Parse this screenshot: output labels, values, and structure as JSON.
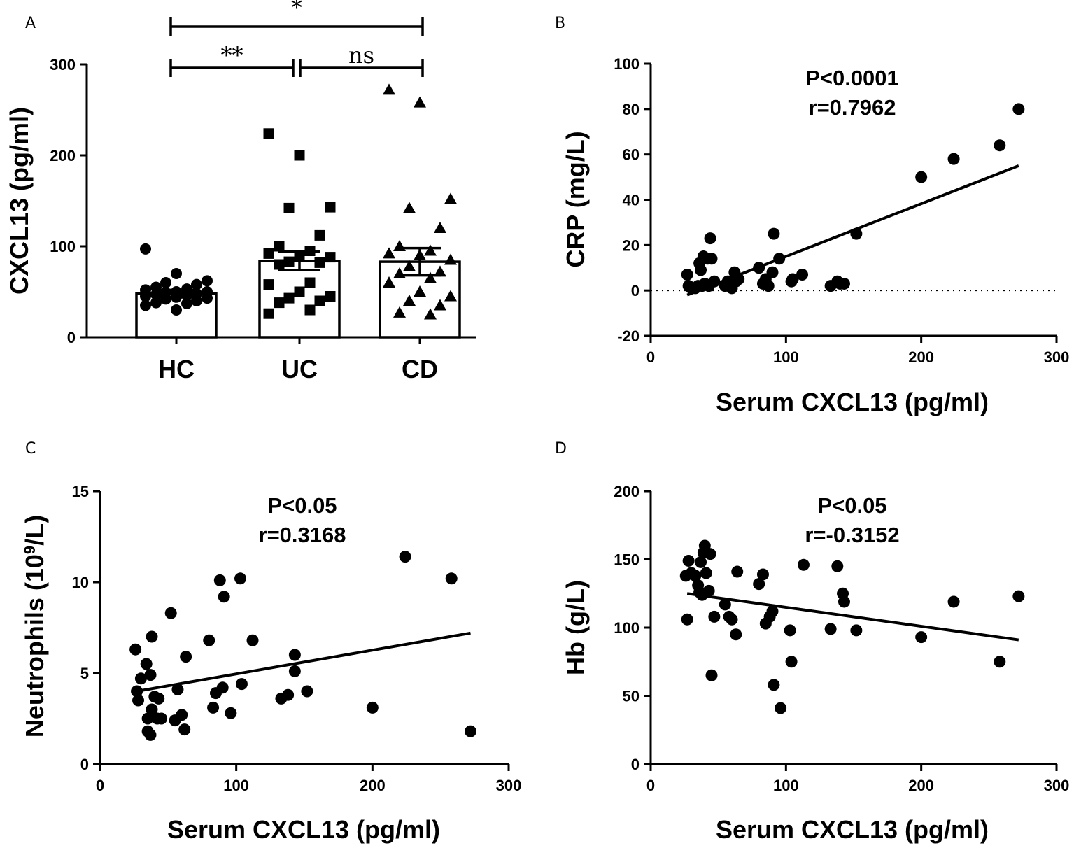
{
  "chart_data": [
    {
      "panel": "A",
      "type": "bar",
      "categories": [
        "HC",
        "UC",
        "CD"
      ],
      "values": [
        48,
        84,
        83
      ],
      "sem": [
        4,
        10,
        15
      ],
      "ylabel": "CXCL13 (pg/ml)",
      "ylim": [
        0,
        300
      ],
      "yticks": [
        0,
        100,
        200,
        300
      ],
      "markers": [
        "circle",
        "square",
        "triangle"
      ],
      "points": [
        [
          97,
          70,
          62,
          60,
          58,
          55,
          53,
          52,
          50,
          50,
          49,
          48,
          47,
          46,
          45,
          44,
          43,
          42,
          40,
          38,
          37,
          35,
          30
        ],
        [
          224,
          200,
          143,
          142,
          112,
          100,
          95,
          92,
          90,
          88,
          83,
          82,
          80,
          60,
          58,
          50,
          45,
          43,
          40,
          38,
          30,
          26
        ],
        [
          272,
          258,
          152,
          142,
          120,
          100,
          95,
          92,
          90,
          85,
          78,
          72,
          70,
          65,
          60,
          50,
          45,
          40,
          35,
          27,
          25
        ]
      ],
      "comparisons": [
        {
          "label": "*",
          "from": "HC",
          "to": "CD"
        },
        {
          "label": "**",
          "from": "HC",
          "to": "UC"
        },
        {
          "label": "ns",
          "from": "UC",
          "to": "CD"
        }
      ]
    },
    {
      "panel": "B",
      "type": "scatter",
      "xlabel": "Serum CXCL13 (pg/ml)",
      "ylabel": "CRP (mg/L)",
      "xlim": [
        0,
        300
      ],
      "ylim": [
        -20,
        100
      ],
      "xticks": [
        0,
        100,
        200,
        300
      ],
      "yticks": [
        -20,
        0,
        20,
        40,
        60,
        80,
        100
      ],
      "p_text": "P<0.0001",
      "r_text": "r=0.7962",
      "zero_line": true,
      "fit": {
        "x": [
          27,
          272
        ],
        "y": [
          -2,
          55
        ]
      },
      "x": [
        27,
        28,
        30,
        33,
        35,
        36,
        37,
        38,
        39,
        40,
        42,
        43,
        44,
        45,
        47,
        55,
        57,
        60,
        62,
        63,
        65,
        80,
        83,
        85,
        87,
        90,
        91,
        95,
        104,
        105,
        112,
        133,
        138,
        140,
        143,
        152,
        200,
        224,
        258,
        272
      ],
      "y": [
        7,
        2,
        1,
        1,
        2,
        12,
        9,
        2,
        15,
        3,
        14,
        2,
        23,
        14,
        4,
        2,
        4,
        1,
        8,
        4,
        5,
        10,
        3,
        5,
        2,
        8,
        25,
        14,
        4,
        5,
        7,
        2,
        4,
        3,
        3,
        25,
        50,
        58,
        64,
        80
      ]
    },
    {
      "panel": "C",
      "type": "scatter",
      "xlabel": "Serum CXCL13 (pg/ml)",
      "ylabel_main": "Neutrophils (10",
      "ylabel_sup": "9",
      "ylabel_end": "/L)",
      "xlim": [
        0,
        300
      ],
      "ylim": [
        0,
        15
      ],
      "xticks": [
        0,
        100,
        200,
        300
      ],
      "yticks": [
        0,
        5,
        10,
        15
      ],
      "p_text": "P<0.05",
      "r_text": "r=0.3168",
      "fit": {
        "x": [
          27,
          272
        ],
        "y": [
          4.0,
          7.2
        ]
      },
      "x": [
        26,
        27,
        28,
        30,
        34,
        35,
        35,
        37,
        37,
        38,
        38,
        40,
        42,
        43,
        45,
        52,
        55,
        57,
        60,
        62,
        63,
        80,
        83,
        85,
        88,
        90,
        91,
        96,
        103,
        104,
        112,
        133,
        138,
        143,
        143,
        152,
        200,
        224,
        258,
        272
      ],
      "y": [
        6.3,
        4.0,
        3.5,
        4.7,
        5.5,
        2.5,
        1.8,
        1.6,
        4.9,
        7.0,
        3.0,
        3.7,
        2.5,
        3.6,
        2.5,
        8.3,
        2.4,
        4.1,
        2.7,
        1.9,
        5.9,
        6.8,
        3.1,
        3.9,
        10.1,
        4.2,
        9.2,
        2.8,
        10.2,
        4.4,
        6.8,
        3.6,
        3.8,
        5.1,
        6.0,
        4.0,
        3.1,
        11.4,
        10.2,
        1.8
      ]
    },
    {
      "panel": "D",
      "type": "scatter",
      "xlabel": "Serum CXCL13 (pg/ml)",
      "ylabel": "Hb (g/L)",
      "xlim": [
        0,
        300
      ],
      "ylim": [
        0,
        200
      ],
      "xticks": [
        0,
        100,
        200,
        300
      ],
      "yticks": [
        0,
        50,
        100,
        150,
        200
      ],
      "p_text": "P<0.05",
      "r_text": "r=-0.3152",
      "fit": {
        "x": [
          27,
          272
        ],
        "y": [
          125,
          91
        ]
      },
      "x": [
        26,
        27,
        28,
        30,
        33,
        35,
        36,
        37,
        38,
        39,
        40,
        41,
        43,
        44,
        45,
        47,
        55,
        58,
        60,
        63,
        64,
        80,
        83,
        85,
        88,
        90,
        91,
        96,
        103,
        104,
        113,
        133,
        138,
        142,
        143,
        152,
        200,
        224,
        258,
        272
      ],
      "y": [
        138,
        106,
        149,
        140,
        138,
        131,
        126,
        148,
        124,
        155,
        160,
        140,
        127,
        154,
        65,
        108,
        117,
        108,
        106,
        95,
        141,
        132,
        139,
        103,
        108,
        112,
        58,
        41,
        98,
        75,
        146,
        99,
        145,
        125,
        119,
        98,
        93,
        119,
        75,
        123
      ]
    }
  ]
}
